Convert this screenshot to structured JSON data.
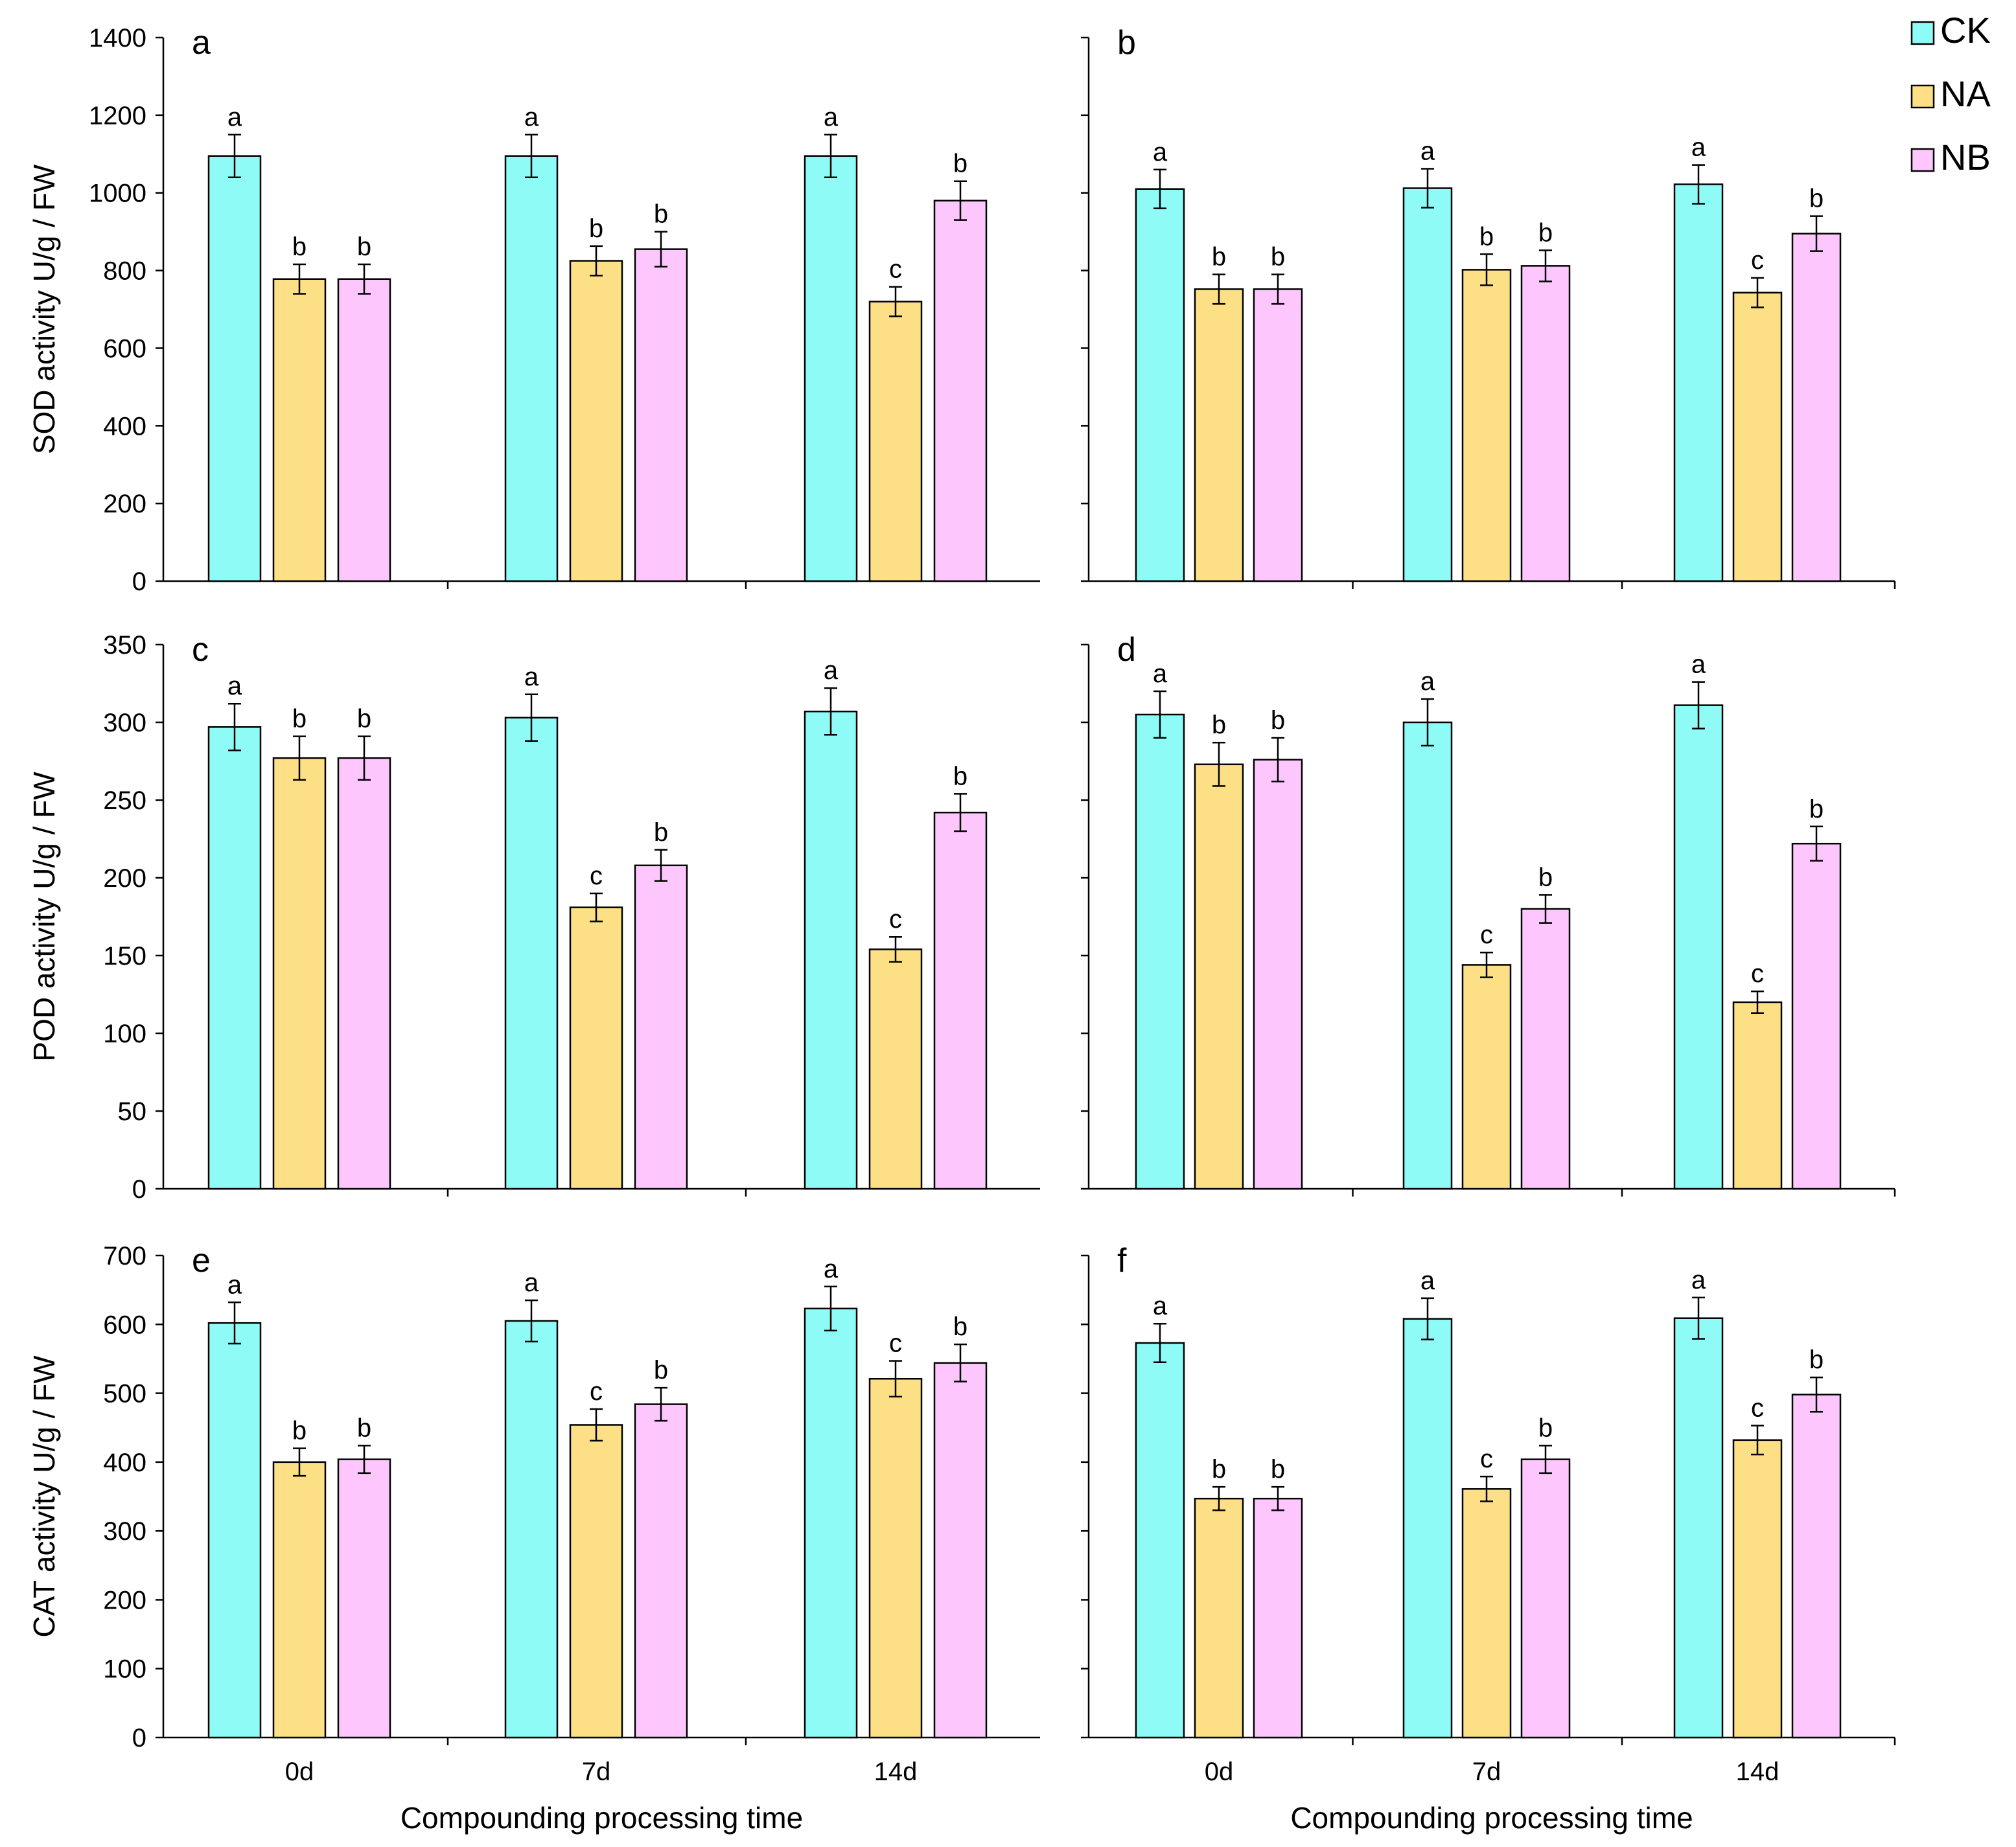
{
  "chart_data": {
    "type": "bar",
    "figure": {
      "categories": [
        "0d",
        "7d",
        "14d"
      ],
      "series_names": [
        "CK",
        "NA",
        "NB"
      ],
      "colors": {
        "CK": "#8efbf6",
        "NA": "#fde085",
        "NB": "#fdc7fd"
      },
      "xlabel": "Compounding processing time",
      "legend": {
        "position": "top-right",
        "entries": [
          "CK",
          "NA",
          "NB"
        ]
      }
    },
    "panels": [
      {
        "id": "a",
        "label": "a",
        "ylabel": "SOD activity U/g / FW",
        "ylim": [
          0,
          1400
        ],
        "yticks": [
          0,
          200,
          400,
          600,
          800,
          1000,
          1200,
          1400
        ],
        "show_ticks": true,
        "series": [
          {
            "name": "CK",
            "values": [
              1095,
              1095,
              1095
            ],
            "errors": [
              55,
              55,
              55
            ],
            "letters": [
              "a",
              "a",
              "a"
            ]
          },
          {
            "name": "NA",
            "values": [
              778,
              825,
              720
            ],
            "errors": [
              38,
              38,
              38
            ],
            "letters": [
              "b",
              "b",
              "c"
            ]
          },
          {
            "name": "NB",
            "values": [
              778,
              855,
              980
            ],
            "errors": [
              38,
              45,
              50
            ],
            "letters": [
              "b",
              "b",
              "b"
            ]
          }
        ]
      },
      {
        "id": "b",
        "label": "b",
        "ylabel": "",
        "ylim": [
          0,
          1400
        ],
        "yticks": [
          0,
          200,
          400,
          600,
          800,
          1000,
          1200,
          1400
        ],
        "show_ticks": false,
        "series": [
          {
            "name": "CK",
            "values": [
              1010,
              1012,
              1022
            ],
            "errors": [
              50,
              50,
              50
            ],
            "letters": [
              "a",
              "a",
              "a"
            ]
          },
          {
            "name": "NA",
            "values": [
              752,
              802,
              743
            ],
            "errors": [
              38,
              40,
              38
            ],
            "letters": [
              "b",
              "b",
              "c"
            ]
          },
          {
            "name": "NB",
            "values": [
              752,
              812,
              895
            ],
            "errors": [
              38,
              40,
              45
            ],
            "letters": [
              "b",
              "b",
              "b"
            ]
          }
        ]
      },
      {
        "id": "c",
        "label": "c",
        "ylabel": "POD activity U/g / FW",
        "ylim": [
          0,
          350
        ],
        "yticks": [
          0,
          50,
          100,
          150,
          200,
          250,
          300,
          350
        ],
        "show_ticks": true,
        "series": [
          {
            "name": "CK",
            "values": [
              297,
              303,
              307
            ],
            "errors": [
              15,
              15,
              15
            ],
            "letters": [
              "a",
              "a",
              "a"
            ]
          },
          {
            "name": "NA",
            "values": [
              277,
              181,
              154
            ],
            "errors": [
              14,
              9,
              8
            ],
            "letters": [
              "b",
              "c",
              "c"
            ]
          },
          {
            "name": "NB",
            "values": [
              277,
              208,
              242
            ],
            "errors": [
              14,
              10,
              12
            ],
            "letters": [
              "b",
              "b",
              "b"
            ]
          }
        ]
      },
      {
        "id": "d",
        "label": "d",
        "ylabel": "",
        "ylim": [
          0,
          350
        ],
        "yticks": [
          0,
          50,
          100,
          150,
          200,
          250,
          300,
          350
        ],
        "show_ticks": false,
        "series": [
          {
            "name": "CK",
            "values": [
              305,
              300,
              311
            ],
            "errors": [
              15,
              15,
              15
            ],
            "letters": [
              "a",
              "a",
              "a"
            ]
          },
          {
            "name": "NA",
            "values": [
              273,
              144,
              120
            ],
            "errors": [
              14,
              8,
              7
            ],
            "letters": [
              "b",
              "c",
              "c"
            ]
          },
          {
            "name": "NB",
            "values": [
              276,
              180,
              222
            ],
            "errors": [
              14,
              9,
              11
            ],
            "letters": [
              "b",
              "b",
              "b"
            ]
          }
        ]
      },
      {
        "id": "e",
        "label": "e",
        "ylabel": "CAT activity U/g / FW",
        "ylim": [
          0,
          700
        ],
        "yticks": [
          0,
          100,
          200,
          300,
          400,
          500,
          600,
          700
        ],
        "show_ticks": true,
        "series": [
          {
            "name": "CK",
            "values": [
              602,
              605,
              623
            ],
            "errors": [
              30,
              30,
              32
            ],
            "letters": [
              "a",
              "a",
              "a"
            ]
          },
          {
            "name": "NA",
            "values": [
              400,
              454,
              521
            ],
            "errors": [
              20,
              23,
              26
            ],
            "letters": [
              "b",
              "c",
              "c"
            ]
          },
          {
            "name": "NB",
            "values": [
              404,
              484,
              544
            ],
            "errors": [
              20,
              24,
              27
            ],
            "letters": [
              "b",
              "b",
              "b"
            ]
          }
        ]
      },
      {
        "id": "f",
        "label": "f",
        "ylabel": "",
        "ylim": [
          0,
          700
        ],
        "yticks": [
          0,
          100,
          200,
          300,
          400,
          500,
          600,
          700
        ],
        "show_ticks": false,
        "series": [
          {
            "name": "CK",
            "values": [
              573,
              608,
              609
            ],
            "errors": [
              28,
              30,
              30
            ],
            "letters": [
              "a",
              "a",
              "a"
            ]
          },
          {
            "name": "NA",
            "values": [
              347,
              361,
              432
            ],
            "errors": [
              17,
              18,
              21
            ],
            "letters": [
              "b",
              "c",
              "c"
            ]
          },
          {
            "name": "NB",
            "values": [
              347,
              404,
              498
            ],
            "errors": [
              17,
              20,
              25
            ],
            "letters": [
              "b",
              "b",
              "b"
            ]
          }
        ]
      }
    ]
  }
}
